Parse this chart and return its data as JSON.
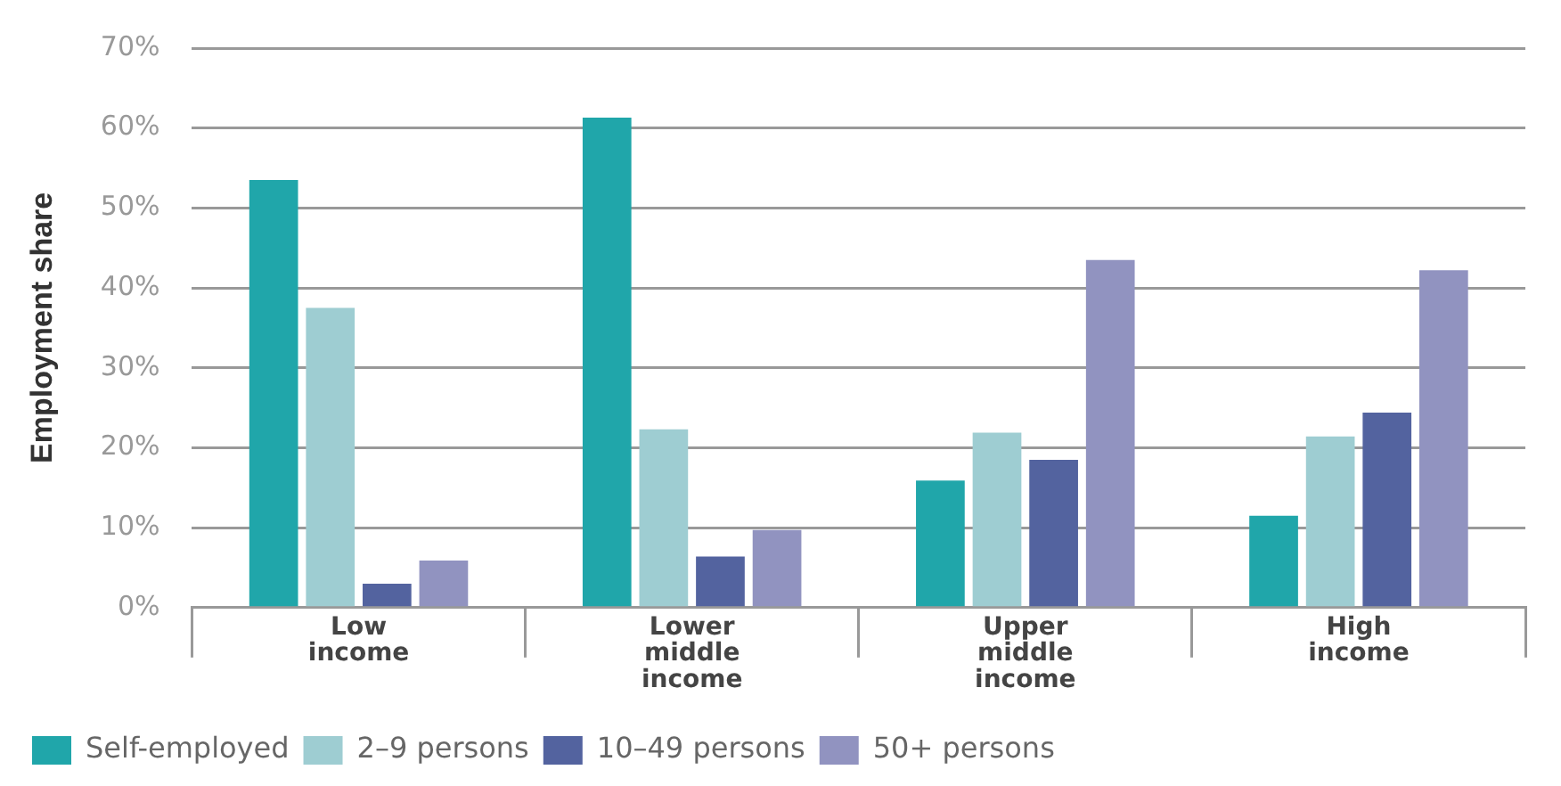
{
  "chart_data": {
    "type": "bar",
    "ylabel": "Employment share",
    "categories": [
      "Low income",
      "Lower middle income",
      "Upper middle income",
      "High income"
    ],
    "series": [
      {
        "name": "Self-employed",
        "color": "#20a6aa",
        "values": [
          53.5,
          61.3,
          15.9,
          11.5
        ]
      },
      {
        "name": "2–9 persons",
        "color": "#9ecdd2",
        "values": [
          37.5,
          22.3,
          21.9,
          21.4
        ]
      },
      {
        "name": "10–49 persons",
        "color": "#53639f",
        "values": [
          3.0,
          6.4,
          18.5,
          24.4
        ]
      },
      {
        "name": "50+ persons",
        "color": "#9193c0",
        "values": [
          5.9,
          9.7,
          43.5,
          42.2
        ]
      }
    ],
    "ylim": [
      0,
      70
    ],
    "yticks": [
      {
        "value": 0,
        "label": "0%"
      },
      {
        "value": 10,
        "label": "10%"
      },
      {
        "value": 20,
        "label": "20%"
      },
      {
        "value": 30,
        "label": "30%"
      },
      {
        "value": 40,
        "label": "40%"
      },
      {
        "value": 50,
        "label": "50%"
      },
      {
        "value": 60,
        "label": "60%"
      },
      {
        "value": 70,
        "label": "70%"
      }
    ],
    "grid": "y",
    "legend": "bottom left"
  }
}
